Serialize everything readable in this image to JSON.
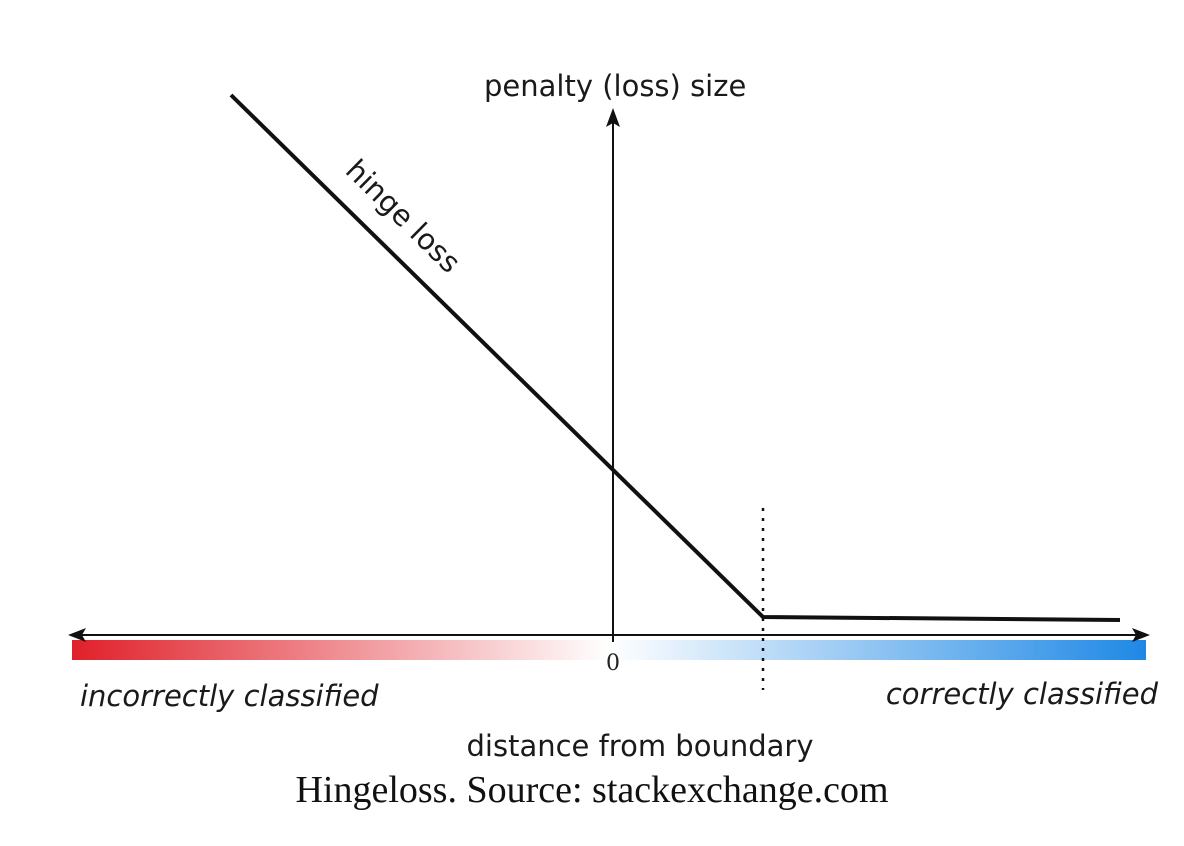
{
  "figure": {
    "y_axis_label": "penalty (loss) size",
    "x_axis_label": "distance from boundary",
    "origin_label": "0",
    "curve_label": "hinge loss",
    "left_label": "incorrectly classified",
    "right_label": "correctly classified",
    "colors": {
      "incorrect": "#e0202a",
      "boundary": "#ffffff",
      "correct": "#1e88e5",
      "line": "#111111"
    }
  },
  "caption": "Hingeloss. Source: stackexchange.com"
}
